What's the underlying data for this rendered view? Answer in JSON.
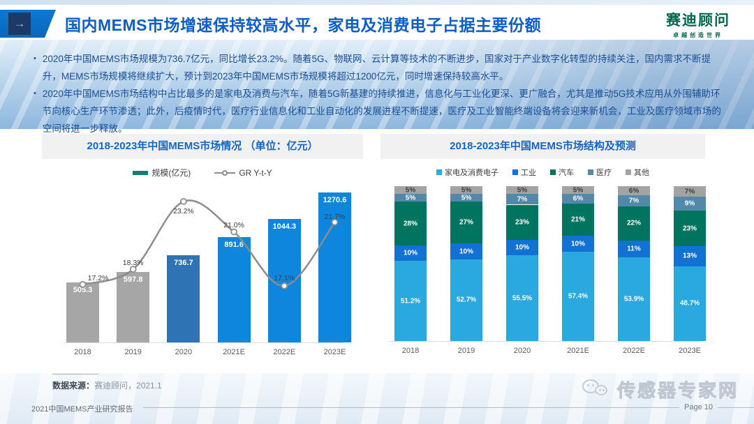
{
  "header": {
    "title": "国内MEMS市场增速保持较高水平，家电及消费电子占据主要份额",
    "arrow_glyph": "→",
    "logo_name": "赛迪顾问",
    "logo_slogan": "卓越创造世界"
  },
  "summary": {
    "bullet_char": "•",
    "bullets": [
      "2020年中国MEMS市场规模为736.7亿元，同比增长23.2%。随着5G、物联网、云计算等技术的不断进步，国家对于产业数字化转型的持续关注，国内需求不断提升，MEMS市场规模将继续扩大，预计到2023年中国MEMS市场规模将超过1200亿元，同时增速保持较高水平。",
      "2020年中国MEMS市场结构中占比最多的是家电及消费与汽车，随着5G新基建的持续推进，信息化与工业化更深、更广融合，尤其是推动5G技术应用从外围辅助环节向核心生产环节渗透；此外，后疫情时代，医疗行业信息化和工业自动化的发展进程不断提速，医疗及工业智能终端设备将会迎来新机会，工业及医疗领域市场的空间将进一步释放。"
    ]
  },
  "chart_data": [
    {
      "type": "bar",
      "title": "2018-2023年中国MEMS市场情况 （单位：亿元）",
      "categories": [
        "2018",
        "2019",
        "2020",
        "2021E",
        "2022E",
        "2023E"
      ],
      "series": [
        {
          "name": "规模(亿元)",
          "type": "bar",
          "values": [
            505.3,
            597.8,
            736.7,
            891.6,
            1044.3,
            1270.6
          ],
          "colors": [
            "#a6a6a6",
            "#a6a6a6",
            "#2e74b5",
            "#0e86dd",
            "#0e86dd",
            "#0e86dd"
          ],
          "legend_color": "#0e8074"
        },
        {
          "name": "GR Y-t-Y",
          "type": "line",
          "unit": "%",
          "values": [
            17.2,
            18.3,
            23.2,
            21.0,
            17.1,
            21.7
          ],
          "color": "#8c8c8c"
        }
      ],
      "ylim": [
        0,
        1400
      ],
      "grid": false,
      "legend_position": "top"
    },
    {
      "type": "stacked-bar",
      "title": "2018-2023年中国MEMS市场结构及预测",
      "categories": [
        "2018",
        "2019",
        "2020",
        "2021E",
        "2022E",
        "2023E"
      ],
      "series": [
        {
          "name": "家电及消费电子",
          "color": "#29a9df",
          "label_color": "#ffffff",
          "values": [
            51.2,
            52.7,
            55.5,
            57.4,
            53.9,
            48.7
          ]
        },
        {
          "name": "工业",
          "color": "#1272d3",
          "label_color": "#ffffff",
          "values": [
            10,
            10,
            10,
            10,
            11,
            13
          ]
        },
        {
          "name": "汽车",
          "color": "#00745e",
          "label_color": "#ffffff",
          "values": [
            28,
            27,
            23,
            21,
            22,
            23
          ]
        },
        {
          "name": "医疗",
          "color": "#5289a8",
          "label_color": "#ffffff",
          "values": [
            5,
            5,
            7,
            6,
            7,
            9
          ]
        },
        {
          "name": "其他",
          "color": "#a3a3a3",
          "label_color": "#3c3c3c",
          "values": [
            5,
            5,
            5,
            5,
            6,
            7
          ]
        }
      ],
      "ylim": [
        0,
        100
      ],
      "unit": "%",
      "grid": false,
      "legend_position": "top"
    }
  ],
  "source": {
    "label": "数据来源：",
    "value": "赛迪顾问，2021.1"
  },
  "footer": {
    "report": "2021中国MEMS产业研究报告",
    "page": "Page 10",
    "watermark": "传感器专家网"
  }
}
